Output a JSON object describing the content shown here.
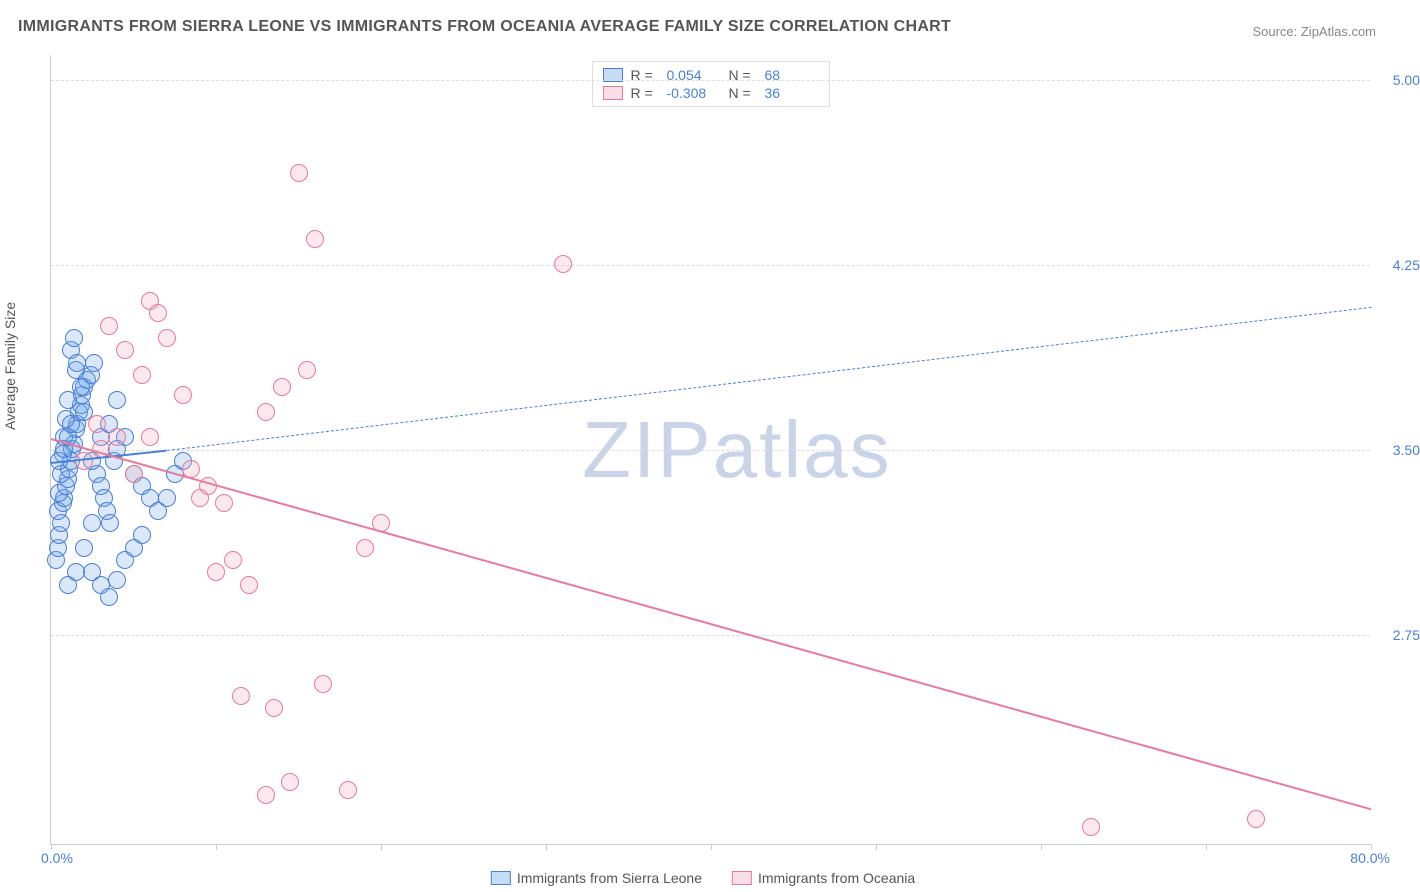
{
  "title": "IMMIGRANTS FROM SIERRA LEONE VS IMMIGRANTS FROM OCEANIA AVERAGE FAMILY SIZE CORRELATION CHART",
  "source": "Source: ZipAtlas.com",
  "watermark": "ZIPatlas",
  "ylabel": "Average Family Size",
  "chart": {
    "type": "scatter",
    "xlim": [
      0,
      80
    ],
    "ylim": [
      1.9,
      5.1
    ],
    "yticks": [
      2.75,
      3.5,
      4.25,
      5.0
    ],
    "xtick_positions_pct": [
      0,
      12.5,
      25,
      37.5,
      50,
      62.5,
      75,
      87.5,
      100
    ],
    "xaxis_min_label": "0.0%",
    "xaxis_max_label": "80.0%",
    "background": "#ffffff",
    "grid_color": "#dddddd",
    "axis_color": "#cccccc",
    "tick_label_color": "#4a7fd8",
    "marker_radius": 9,
    "marker_fill_opacity": 0.25
  },
  "series": [
    {
      "name": "Immigrants from Sierra Leone",
      "color": "#6ba3e8",
      "stroke": "#4a7fd8",
      "R": "0.054",
      "N": "68",
      "trend": {
        "x1": 0,
        "y1": 3.45,
        "x2_solid": 7,
        "y2_solid": 3.5,
        "x2_dash": 80,
        "y2_dash": 4.08
      },
      "points": [
        [
          0.3,
          3.05
        ],
        [
          0.4,
          3.1
        ],
        [
          0.5,
          3.15
        ],
        [
          0.6,
          3.2
        ],
        [
          0.4,
          3.25
        ],
        [
          0.7,
          3.28
        ],
        [
          0.8,
          3.3
        ],
        [
          0.5,
          3.32
        ],
        [
          0.9,
          3.35
        ],
        [
          1.0,
          3.38
        ],
        [
          0.6,
          3.4
        ],
        [
          1.1,
          3.42
        ],
        [
          1.2,
          3.45
        ],
        [
          0.7,
          3.48
        ],
        [
          1.3,
          3.5
        ],
        [
          1.4,
          3.52
        ],
        [
          0.8,
          3.55
        ],
        [
          1.5,
          3.58
        ],
        [
          1.6,
          3.6
        ],
        [
          0.9,
          3.62
        ],
        [
          1.7,
          3.65
        ],
        [
          1.8,
          3.68
        ],
        [
          1.0,
          3.7
        ],
        [
          1.9,
          3.72
        ],
        [
          2.0,
          3.75
        ],
        [
          2.2,
          3.78
        ],
        [
          2.4,
          3.8
        ],
        [
          1.5,
          3.82
        ],
        [
          2.6,
          3.85
        ],
        [
          2.8,
          3.4
        ],
        [
          3.0,
          3.35
        ],
        [
          3.2,
          3.3
        ],
        [
          3.4,
          3.25
        ],
        [
          3.6,
          3.2
        ],
        [
          3.8,
          3.45
        ],
        [
          4.0,
          3.5
        ],
        [
          4.5,
          3.55
        ],
        [
          5.0,
          3.4
        ],
        [
          5.5,
          3.35
        ],
        [
          6.0,
          3.3
        ],
        [
          2.5,
          3.0
        ],
        [
          3.0,
          2.95
        ],
        [
          3.5,
          2.9
        ],
        [
          4.0,
          2.97
        ],
        [
          4.5,
          3.05
        ],
        [
          5.0,
          3.1
        ],
        [
          5.5,
          3.15
        ],
        [
          1.2,
          3.9
        ],
        [
          1.4,
          3.95
        ],
        [
          1.6,
          3.85
        ],
        [
          1.8,
          3.75
        ],
        [
          2.0,
          3.65
        ],
        [
          2.5,
          3.45
        ],
        [
          3.0,
          3.55
        ],
        [
          3.5,
          3.6
        ],
        [
          4.0,
          3.7
        ],
        [
          6.5,
          3.25
        ],
        [
          7.0,
          3.3
        ],
        [
          7.5,
          3.4
        ],
        [
          8.0,
          3.45
        ],
        [
          1.0,
          2.95
        ],
        [
          1.5,
          3.0
        ],
        [
          2.0,
          3.1
        ],
        [
          2.5,
          3.2
        ],
        [
          0.5,
          3.45
        ],
        [
          0.8,
          3.5
        ],
        [
          1.0,
          3.55
        ],
        [
          1.2,
          3.6
        ]
      ]
    },
    {
      "name": "Immigrants from Oceania",
      "color": "#f0a8bc",
      "stroke": "#e87a9a",
      "R": "-0.308",
      "N": "36",
      "trend": {
        "x1": 0,
        "y1": 3.55,
        "x2_solid": 80,
        "y2_solid": 2.05,
        "x2_dash": 80,
        "y2_dash": 2.05
      },
      "points": [
        [
          2.0,
          3.45
        ],
        [
          3.0,
          3.5
        ],
        [
          4.0,
          3.55
        ],
        [
          5.0,
          3.4
        ],
        [
          6.0,
          4.1
        ],
        [
          6.5,
          4.05
        ],
        [
          7.0,
          3.95
        ],
        [
          8.0,
          3.72
        ],
        [
          9.0,
          3.3
        ],
        [
          10.0,
          3.0
        ],
        [
          11.0,
          3.05
        ],
        [
          12.0,
          2.95
        ],
        [
          13.0,
          3.65
        ],
        [
          14.0,
          3.75
        ],
        [
          15.0,
          4.62
        ],
        [
          16.0,
          4.35
        ],
        [
          11.5,
          2.5
        ],
        [
          13.5,
          2.45
        ],
        [
          15.5,
          3.82
        ],
        [
          19.0,
          3.1
        ],
        [
          20.0,
          3.2
        ],
        [
          31.0,
          4.25
        ],
        [
          13.0,
          2.1
        ],
        [
          14.5,
          2.15
        ],
        [
          18.0,
          2.12
        ],
        [
          6.0,
          3.55
        ],
        [
          8.5,
          3.42
        ],
        [
          9.5,
          3.35
        ],
        [
          10.5,
          3.28
        ],
        [
          5.5,
          3.8
        ],
        [
          4.5,
          3.9
        ],
        [
          3.5,
          4.0
        ],
        [
          2.8,
          3.6
        ],
        [
          63.0,
          1.97
        ],
        [
          73.0,
          2.0
        ],
        [
          16.5,
          2.55
        ]
      ]
    }
  ],
  "legend_labels": {
    "R": "R =",
    "N": "N ="
  }
}
